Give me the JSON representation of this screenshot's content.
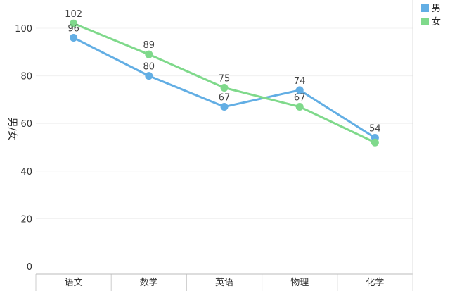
{
  "chart_data": {
    "type": "line",
    "categories": [
      "语文",
      "数学",
      "英语",
      "物理",
      "化学"
    ],
    "series": [
      {
        "name": "男",
        "values": [
          96,
          80,
          67,
          74,
          54
        ],
        "color": "#62aee4"
      },
      {
        "name": "女",
        "values": [
          102,
          89,
          75,
          67,
          52
        ],
        "color": "#7fd98b"
      }
    ],
    "data_labels": {
      "男": [
        "96",
        "80",
        "67",
        "74",
        "54"
      ],
      "女": [
        "102",
        "89",
        "75",
        "67",
        ""
      ]
    },
    "ylabel": "男/女",
    "y_ticks": [
      0,
      20,
      40,
      60,
      80,
      100
    ],
    "ylim": [
      0,
      110
    ],
    "grid": true,
    "legend_position": "top-right"
  }
}
